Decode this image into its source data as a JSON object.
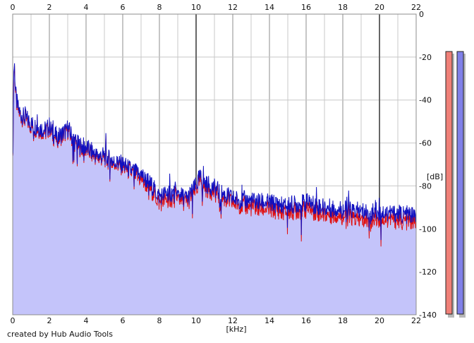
{
  "footer": "created by Hub Audio Tools",
  "chart_data": {
    "type": "area",
    "xlabel": "[kHz]",
    "ylabel": "[dB]",
    "xlim": [
      0,
      22
    ],
    "ylim": [
      -140,
      0
    ],
    "x_ticks": [
      "0",
      "2",
      "4",
      "6",
      "8",
      "10",
      "12",
      "14",
      "16",
      "18",
      "20",
      "22"
    ],
    "y_ticks": [
      "0",
      "-20",
      "-40",
      "-60",
      "-80",
      "-100",
      "-120",
      "-140"
    ],
    "grid": true,
    "colors": {
      "fill": "#c4c4fa",
      "blue_line": "#1010c0",
      "red_line": "#e01010",
      "grid_major": "#8c8c8c",
      "grid_minor": "#c8c8c8",
      "meter_left": "#f08078",
      "meter_right": "#8080e8"
    },
    "series": [
      {
        "name": "",
        "color": "#1010c0",
        "x": [
          0,
          0.05,
          0.1,
          0.15,
          0.2,
          0.3,
          0.4,
          0.5,
          0.6,
          0.8,
          1.0,
          1.2,
          1.5,
          1.8,
          2.0,
          2.2,
          2.5,
          2.8,
          3.0,
          3.3,
          3.6,
          4.0,
          4.3,
          4.6,
          5.0,
          5.5,
          6.0,
          6.5,
          7.0,
          7.5,
          8.0,
          8.5,
          9.0,
          9.5,
          10.0,
          10.2,
          10.5,
          11.0,
          11.5,
          12.0,
          13.0,
          14.0,
          15.0,
          16.0,
          17.0,
          18.0,
          19.0,
          20.0,
          21.0,
          22.0
        ],
        "y": [
          -70,
          -26,
          -24,
          -35,
          -40,
          -44,
          -46,
          -47,
          -48,
          -49,
          -51,
          -52,
          -53,
          -54,
          -52,
          -56,
          -57,
          -55,
          -53,
          -58,
          -61,
          -62,
          -64,
          -66,
          -66,
          -69,
          -70,
          -73,
          -75,
          -79,
          -85,
          -83,
          -84,
          -86,
          -80,
          -76,
          -79,
          -81,
          -84,
          -86,
          -87,
          -88,
          -89,
          -88,
          -90,
          -91,
          -92,
          -92,
          -93,
          -94
        ]
      },
      {
        "name": "",
        "color": "#e01010",
        "x": [
          0,
          0.05,
          0.1,
          0.15,
          0.2,
          0.3,
          0.4,
          0.5,
          0.6,
          0.8,
          1.0,
          1.2,
          1.5,
          1.8,
          2.0,
          2.2,
          2.5,
          2.8,
          3.0,
          3.3,
          3.6,
          4.0,
          4.3,
          4.6,
          5.0,
          5.5,
          6.0,
          6.5,
          7.0,
          7.5,
          8.0,
          8.5,
          9.0,
          9.5,
          10.0,
          10.2,
          10.5,
          11.0,
          11.5,
          12.0,
          13.0,
          14.0,
          15.0,
          16.0,
          17.0,
          18.0,
          19.0,
          20.0,
          21.0,
          22.0
        ],
        "y": [
          -70,
          -27,
          -25,
          -36,
          -41,
          -45,
          -47,
          -48,
          -49,
          -50,
          -52,
          -53,
          -54,
          -55,
          -53,
          -57,
          -58,
          -56,
          -54,
          -59,
          -62,
          -63,
          -65,
          -67,
          -67,
          -70,
          -71,
          -74,
          -77,
          -81,
          -88,
          -86,
          -86,
          -88,
          -82,
          -78,
          -81,
          -83,
          -86,
          -88,
          -90,
          -91,
          -92,
          -91,
          -93,
          -94,
          -96,
          -95,
          -96,
          -97
        ]
      }
    ]
  }
}
